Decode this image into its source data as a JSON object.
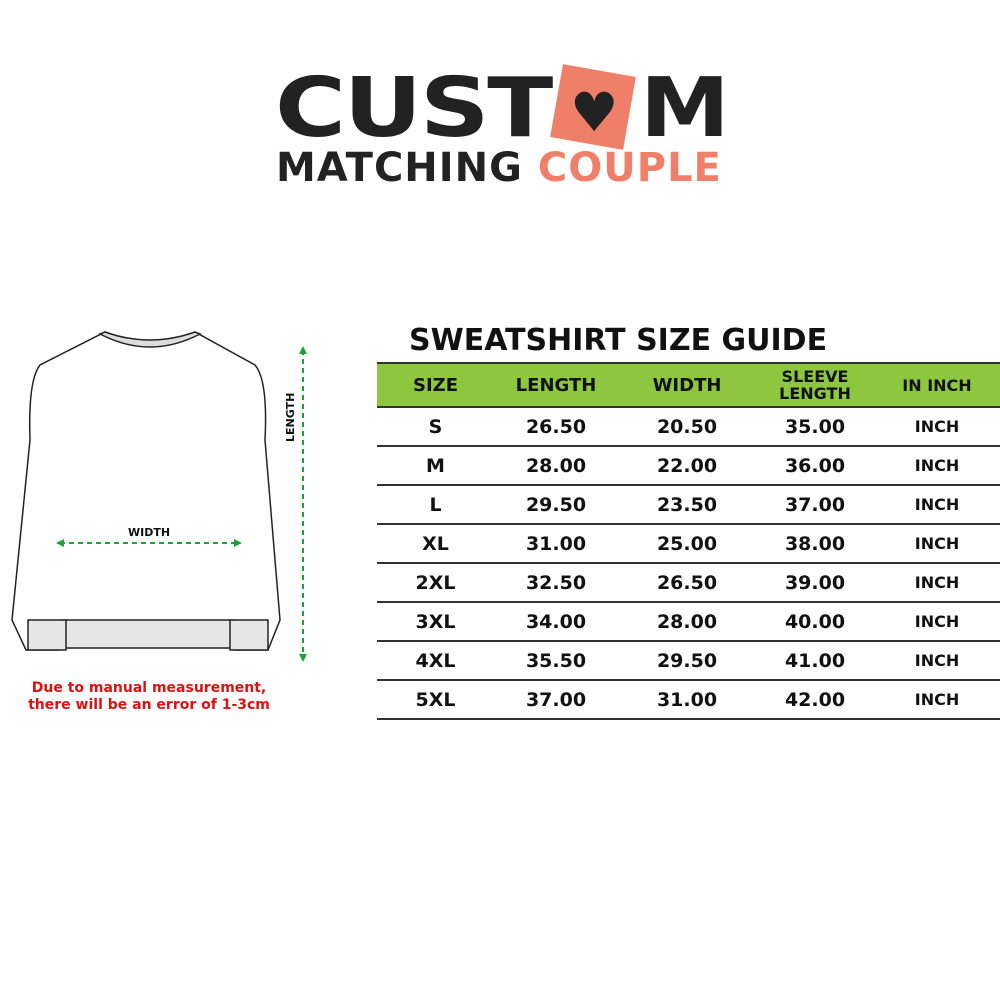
{
  "logo": {
    "line1_a": "CUST",
    "line1_b": "M",
    "heart": "♥",
    "line2_a": "MATCHING",
    "line2_b": "COUPLE",
    "accent": "#f07f69"
  },
  "diagram": {
    "length_label": "LENGTH",
    "width_label": "WIDTH",
    "arrow_color": "#1aa33a"
  },
  "note": {
    "line1": "Due to manual measurement,",
    "line2": "there will be an error of 1-3cm"
  },
  "title": "SWEATSHIRT SIZE GUIDE",
  "header_color": "#8dc63f",
  "table": {
    "headers": [
      "SIZE",
      "LENGTH",
      "WIDTH",
      "SLEEVE LENGTH",
      "IN INCH"
    ],
    "rows": [
      [
        "S",
        "26.50",
        "20.50",
        "35.00",
        "INCH"
      ],
      [
        "M",
        "28.00",
        "22.00",
        "36.00",
        "INCH"
      ],
      [
        "L",
        "29.50",
        "23.50",
        "37.00",
        "INCH"
      ],
      [
        "XL",
        "31.00",
        "25.00",
        "38.00",
        "INCH"
      ],
      [
        "2XL",
        "32.50",
        "26.50",
        "39.00",
        "INCH"
      ],
      [
        "3XL",
        "34.00",
        "28.00",
        "40.00",
        "INCH"
      ],
      [
        "4XL",
        "35.50",
        "29.50",
        "41.00",
        "INCH"
      ],
      [
        "5XL",
        "37.00",
        "31.00",
        "42.00",
        "INCH"
      ]
    ]
  }
}
